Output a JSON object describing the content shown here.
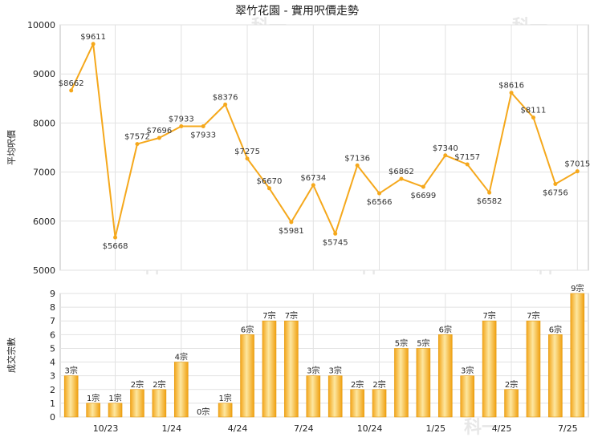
{
  "chart_data": [
    {
      "type": "line",
      "title": "翠竹花園 - 實用呎價走勢",
      "ylabel": "平均呎價",
      "ylim": [
        5000,
        10000
      ],
      "yticks": [
        5000,
        6000,
        7000,
        8000,
        9000,
        10000
      ],
      "grid": true,
      "line_color": "#f5a81c",
      "points": [
        {
          "i": 0,
          "value": 8662,
          "label": "$8662"
        },
        {
          "i": 1,
          "value": 9611,
          "label": "$9611"
        },
        {
          "i": 2,
          "value": 5668,
          "label": "$5668"
        },
        {
          "i": 3,
          "value": 7572,
          "label": "$7572"
        },
        {
          "i": 4,
          "value": 7696,
          "label": "$7696"
        },
        {
          "i": 5,
          "value": 7933,
          "label": "$7933"
        },
        {
          "i": 6,
          "value": 7933,
          "label": "$7933"
        },
        {
          "i": 7,
          "value": 8376,
          "label": "$8376"
        },
        {
          "i": 8,
          "value": 7275,
          "label": "$7275"
        },
        {
          "i": 9,
          "value": 6670,
          "label": "$6670"
        },
        {
          "i": 10,
          "value": 5981,
          "label": "$5981"
        },
        {
          "i": 11,
          "value": 6734,
          "label": "$6734"
        },
        {
          "i": 12,
          "value": 5745,
          "label": "$5745"
        },
        {
          "i": 13,
          "value": 7136,
          "label": "$7136"
        },
        {
          "i": 14,
          "value": 6566,
          "label": "$6566"
        },
        {
          "i": 15,
          "value": 6862,
          "label": "$6862"
        },
        {
          "i": 16,
          "value": 6699,
          "label": "$6699"
        },
        {
          "i": 17,
          "value": 7340,
          "label": "$7340"
        },
        {
          "i": 18,
          "value": 7157,
          "label": "$7157"
        },
        {
          "i": 19,
          "value": 6582,
          "label": "$6582"
        },
        {
          "i": 20,
          "value": 8616,
          "label": "$8616"
        },
        {
          "i": 21,
          "value": 8111,
          "label": "$8111"
        },
        {
          "i": 22,
          "value": 6756,
          "label": "$6756"
        },
        {
          "i": 23,
          "value": 7015,
          "label": "$7015"
        }
      ]
    },
    {
      "type": "bar",
      "ylabel": "成交宗數",
      "ylim": [
        0,
        9
      ],
      "yticks": [
        0,
        1,
        2,
        3,
        4,
        5,
        6,
        7,
        8,
        9
      ],
      "grid": true,
      "bar_color": "#f5a81c",
      "bar_light": "#fde7a0",
      "values": [
        3,
        1,
        1,
        2,
        2,
        4,
        0,
        1,
        6,
        7,
        7,
        3,
        3,
        2,
        2,
        5,
        5,
        6,
        3,
        7,
        2,
        7,
        6,
        9
      ],
      "labels": [
        "3宗",
        "1宗",
        "1宗",
        "2宗",
        "2宗",
        "4宗",
        "0宗",
        "1宗",
        "6宗",
        "7宗",
        "7宗",
        "3宗",
        "3宗",
        "2宗",
        "2宗",
        "5宗",
        "5宗",
        "6宗",
        "3宗",
        "7宗",
        "2宗",
        "7宗",
        "6宗",
        "9宗"
      ],
      "xticks": [
        {
          "i": 2,
          "label": "10/23"
        },
        {
          "i": 5,
          "label": "1/24"
        },
        {
          "i": 8,
          "label": "4/24"
        },
        {
          "i": 11,
          "label": "7/24"
        },
        {
          "i": 14,
          "label": "10/24"
        },
        {
          "i": 17,
          "label": "1/25"
        },
        {
          "i": 20,
          "label": "4/25"
        },
        {
          "i": 23,
          "label": "7/25"
        }
      ]
    }
  ],
  "watermark": "科一"
}
